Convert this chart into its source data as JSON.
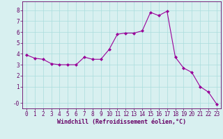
{
  "x": [
    0,
    1,
    2,
    3,
    4,
    5,
    6,
    7,
    8,
    9,
    10,
    11,
    12,
    13,
    14,
    15,
    16,
    17,
    18,
    19,
    20,
    21,
    22,
    23
  ],
  "y": [
    3.9,
    3.6,
    3.5,
    3.1,
    3.0,
    3.0,
    3.0,
    3.7,
    3.5,
    3.5,
    4.4,
    5.8,
    5.9,
    5.9,
    6.1,
    7.8,
    7.5,
    7.9,
    3.7,
    2.7,
    2.3,
    1.0,
    0.5,
    -0.6
  ],
  "line_color": "#990099",
  "marker": "D",
  "markersize": 2.0,
  "linewidth": 0.8,
  "xlabel": "Windchill (Refroidissement éolien,°C)",
  "xlabel_fontsize": 6,
  "xlabel_color": "#660066",
  "ytick_values": [
    -0.5,
    1,
    2,
    3,
    4,
    5,
    6,
    7,
    8
  ],
  "ytick_labels": [
    "-0",
    "1",
    "2",
    "3",
    "4",
    "5",
    "6",
    "7",
    "8"
  ],
  "ylim": [
    -1.0,
    8.8
  ],
  "xlim": [
    -0.5,
    23.5
  ],
  "bg_color": "#d8f0f0",
  "grid_color": "#aadddd",
  "tick_color": "#660066",
  "tick_fontsize": 5.5
}
